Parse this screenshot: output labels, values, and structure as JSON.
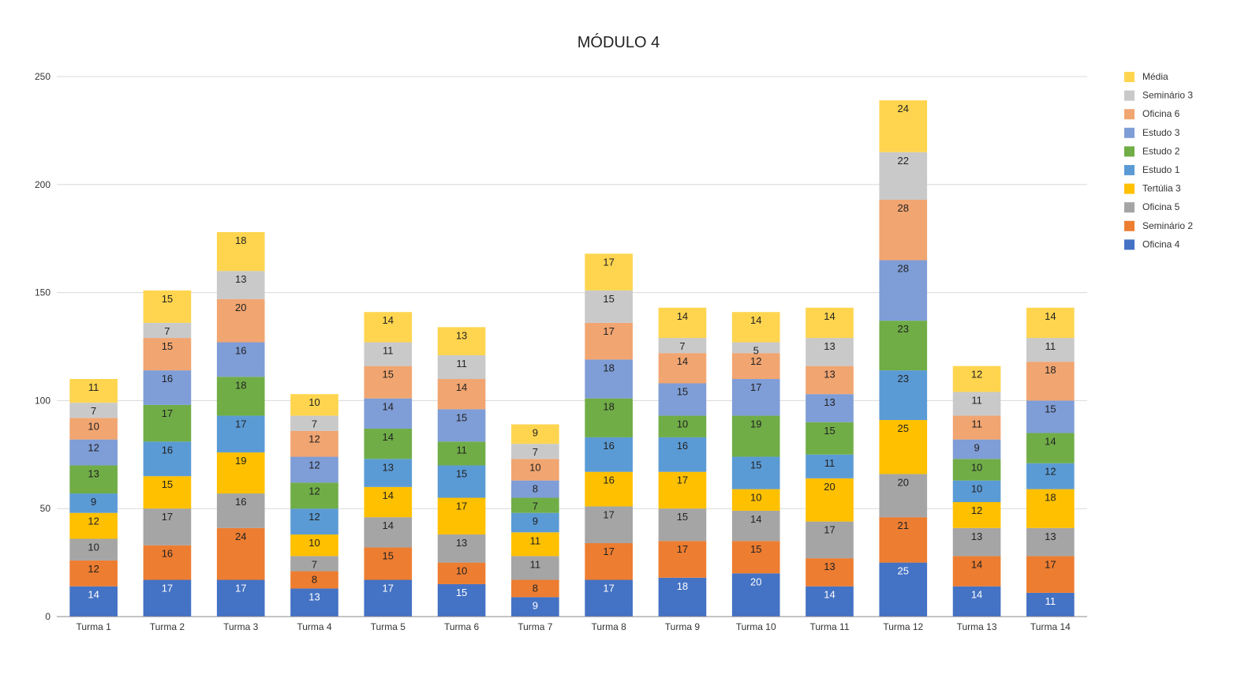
{
  "chart_data": {
    "type": "bar",
    "stacked": true,
    "title": "MÓDULO 4",
    "xlabel": "",
    "ylabel": "",
    "ylim": [
      0,
      250
    ],
    "yticks": [
      0,
      50,
      100,
      150,
      200,
      250
    ],
    "grid": true,
    "legend_position": "right",
    "categories": [
      "Turma 1",
      "Turma 2",
      "Turma 3",
      "Turma 4",
      "Turma 5",
      "Turma 6",
      "Turma 7",
      "Turma 8",
      "Turma 9",
      "Turma 10",
      "Turma 11",
      "Turma 12",
      "Turma 13",
      "Turma 14"
    ],
    "series": [
      {
        "name": "Oficina 4",
        "color": "#4472C4",
        "label_color": "#ffffff",
        "values": [
          14,
          17,
          17,
          13,
          17,
          15,
          9,
          17,
          18,
          20,
          14,
          25,
          14,
          11
        ]
      },
      {
        "name": "Seminário 2",
        "color": "#ED7D31",
        "label_color": "#222222",
        "values": [
          12,
          16,
          24,
          8,
          15,
          10,
          8,
          17,
          17,
          15,
          13,
          21,
          14,
          17
        ]
      },
      {
        "name": "Oficina 5",
        "color": "#A5A5A5",
        "label_color": "#222222",
        "values": [
          10,
          17,
          16,
          7,
          14,
          13,
          11,
          17,
          15,
          14,
          17,
          20,
          13,
          13
        ]
      },
      {
        "name": "Tertúlia 3",
        "color": "#FFC000",
        "label_color": "#222222",
        "values": [
          12,
          15,
          19,
          10,
          14,
          17,
          11,
          16,
          17,
          10,
          20,
          25,
          12,
          18
        ]
      },
      {
        "name": "Estudo 1",
        "color": "#5B9BD5",
        "label_color": "#222222",
        "values": [
          9,
          16,
          17,
          12,
          13,
          15,
          9,
          16,
          16,
          15,
          11,
          23,
          10,
          12
        ]
      },
      {
        "name": "Estudo 2",
        "color": "#70AD47",
        "label_color": "#222222",
        "values": [
          13,
          17,
          18,
          12,
          14,
          11,
          7,
          18,
          10,
          19,
          15,
          23,
          10,
          14
        ]
      },
      {
        "name": "Estudo 3",
        "color": "#7F9DD6",
        "label_color": "#222222",
        "values": [
          12,
          16,
          16,
          12,
          14,
          15,
          8,
          18,
          15,
          17,
          13,
          28,
          9,
          15
        ]
      },
      {
        "name": "Oficina 6",
        "color": "#F1A571",
        "label_color": "#222222",
        "values": [
          10,
          15,
          20,
          12,
          15,
          14,
          10,
          17,
          14,
          12,
          13,
          28,
          11,
          18
        ]
      },
      {
        "name": "Seminário 3",
        "color": "#C9C9C9",
        "label_color": "#222222",
        "values": [
          7,
          7,
          13,
          7,
          11,
          11,
          7,
          15,
          7,
          5,
          13,
          22,
          11,
          11
        ]
      },
      {
        "name": "Média",
        "color": "#FFD54F",
        "label_color": "#222222",
        "values": [
          11,
          15,
          18,
          10,
          14,
          13,
          9,
          17,
          14,
          14,
          14,
          24,
          12,
          14
        ]
      }
    ]
  }
}
